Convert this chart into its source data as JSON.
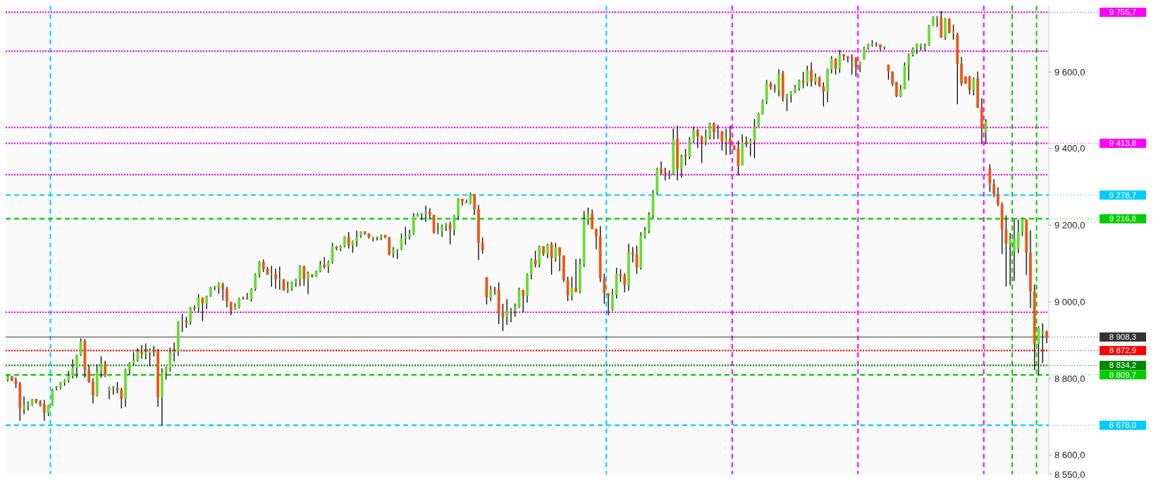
{
  "chart_data": {
    "type": "candlestick",
    "categories": [
      null,
      null,
      null,
      null,
      null,
      null,
      null,
      null,
      null,
      null,
      null,
      null,
      null,
      null,
      null,
      null,
      null,
      null,
      null,
      null,
      null,
      null,
      null,
      null,
      null,
      null,
      null,
      null,
      null,
      null,
      null,
      null,
      null,
      null,
      null,
      null,
      null,
      null,
      null,
      null,
      null,
      null,
      null,
      null,
      null,
      null,
      null,
      null,
      null,
      null,
      null,
      null,
      null,
      null,
      null,
      null,
      null,
      null,
      null,
      null,
      null,
      null,
      null,
      null,
      null,
      null,
      null,
      null,
      null,
      null,
      null,
      null,
      null,
      null,
      null,
      null,
      null,
      null,
      null,
      null,
      null,
      null,
      null,
      null,
      null,
      null,
      null,
      null,
      null,
      null,
      null,
      null,
      null,
      null,
      null,
      null,
      null,
      null,
      null,
      null,
      null,
      null,
      null,
      null,
      null,
      null,
      null,
      null,
      null,
      null,
      null,
      null,
      null,
      null,
      null,
      null,
      null,
      null,
      null,
      null,
      null,
      null,
      null,
      null,
      null,
      null,
      null,
      null,
      null,
      null,
      null,
      null,
      null,
      null,
      null,
      null,
      null,
      null,
      null,
      null,
      null,
      null,
      null,
      null,
      null,
      null,
      null,
      null,
      null,
      null,
      null,
      null,
      null,
      null,
      null,
      null,
      null,
      null,
      null,
      null,
      null,
      null,
      null,
      null,
      null,
      null,
      null,
      null,
      null,
      null,
      null,
      null,
      null,
      null,
      null,
      null,
      null,
      null,
      null,
      null,
      null,
      null,
      null,
      null,
      null,
      null,
      null,
      null,
      null,
      null,
      null,
      null,
      null,
      null,
      null,
      null,
      null,
      null,
      null,
      null,
      null,
      null,
      null,
      null,
      null,
      null,
      null,
      null,
      null,
      null,
      null,
      null,
      null,
      null,
      null,
      null,
      null,
      null,
      null,
      null,
      null,
      null,
      null,
      null,
      null,
      null,
      null,
      null,
      null,
      null,
      null,
      null,
      null,
      null,
      null,
      null,
      null,
      null,
      null,
      null,
      null,
      null,
      null,
      null,
      null,
      null,
      null,
      null,
      null,
      null,
      null,
      null,
      null,
      null,
      null,
      null,
      null
    ],
    "ohlc": [
      [
        8797,
        8808,
        8792,
        8806
      ],
      [
        8806,
        8807,
        8793,
        8795
      ],
      [
        8795,
        8803,
        8775,
        8785
      ],
      [
        8785,
        8791,
        8690,
        8722
      ],
      [
        8721,
        8753,
        8707,
        8731
      ],
      [
        8731,
        8740,
        8717,
        8734
      ],
      [
        8733,
        8747,
        8729,
        8745
      ],
      [
        8747,
        8747,
        8735,
        8738
      ],
      [
        8738,
        8743,
        8727,
        8730
      ],
      [
        8733,
        8744,
        8690,
        8710
      ],
      [
        8709,
        8732,
        8702,
        8731
      ],
      [
        8729,
        8773,
        8729,
        8769
      ],
      [
        8775,
        8780,
        8769,
        8777
      ],
      [
        8775,
        8791,
        8771,
        8789
      ],
      [
        8789,
        8798,
        8781,
        8795
      ],
      [
        8795,
        8820,
        8789,
        8807
      ],
      [
        8807,
        8850,
        8800,
        8827
      ],
      [
        8828,
        8862,
        8802,
        8861
      ],
      [
        8862,
        8905,
        8859,
        8897
      ],
      [
        8897,
        8903,
        8802,
        8822
      ],
      [
        8822,
        8835,
        8789,
        8791
      ],
      [
        8791,
        8801,
        8735,
        8756
      ],
      [
        8756,
        8837,
        8753,
        8818
      ],
      [
        8818,
        8858,
        8802,
        8839
      ],
      [
        8839,
        8846,
        8804,
        8809
      ],
      [
        8769,
        8779,
        8746,
        8776
      ],
      [
        8777,
        8781,
        8758,
        8779
      ],
      [
        8776,
        8791,
        8761,
        8770
      ],
      [
        8770,
        8776,
        8722,
        8747
      ],
      [
        8747,
        8826,
        8726,
        8823
      ],
      [
        8823,
        8843,
        8809,
        8840
      ],
      [
        8840,
        8869,
        8834,
        8848
      ],
      [
        8848,
        8879,
        8844,
        8871
      ],
      [
        8871,
        8887,
        8851,
        8864
      ],
      [
        8864,
        8891,
        8850,
        8867
      ],
      [
        8867,
        8878,
        8832,
        8874
      ],
      [
        8874,
        8885,
        8858,
        8871
      ],
      [
        8871,
        8877,
        8726,
        8751
      ],
      [
        8751,
        8827,
        8677,
        8816
      ],
      [
        8816,
        8831,
        8797,
        8827
      ],
      [
        8827,
        8881,
        8818,
        8867
      ],
      [
        8867,
        8894,
        8844,
        8871
      ],
      [
        8871,
        8950,
        8859,
        8949
      ],
      [
        8949,
        8969,
        8921,
        8951
      ],
      [
        8951,
        8961,
        8932,
        8946
      ],
      [
        8946,
        8987,
        8940,
        8985
      ],
      [
        8985,
        8991,
        8976,
        8984
      ],
      [
        8984,
        9020,
        8972,
        9011
      ],
      [
        9011,
        9011,
        8950,
        8996
      ],
      [
        8996,
        9016,
        8981,
        9014
      ],
      [
        9016,
        9039,
        9013,
        9038
      ],
      [
        9037,
        9041,
        9030,
        9039
      ],
      [
        9038,
        9051,
        9021,
        9048
      ],
      [
        9046,
        9050,
        9004,
        9034
      ],
      [
        9034,
        9039,
        8986,
        9001
      ],
      [
        9000,
        9000,
        8965,
        8978
      ],
      [
        8979,
        8996,
        8979,
        8986
      ],
      [
        8986,
        9011,
        8983,
        9009
      ],
      [
        9009,
        9014,
        9006,
        9008
      ],
      [
        9009,
        9023,
        9006,
        9007
      ],
      [
        9008,
        9036,
        9001,
        9034
      ],
      [
        9034,
        9074,
        9029,
        9071
      ],
      [
        9071,
        9107,
        9063,
        9104
      ],
      [
        9104,
        9111,
        9078,
        9086
      ],
      [
        9087,
        9091,
        9071,
        9071
      ],
      [
        9071,
        9094,
        9039,
        9073
      ],
      [
        9072,
        9087,
        9034,
        9059
      ],
      [
        9059,
        9092,
        9032,
        9060
      ],
      [
        9059,
        9059,
        9029,
        9030
      ],
      [
        9030,
        9053,
        9023,
        9035
      ],
      [
        9035,
        9053,
        9029,
        9051
      ],
      [
        9051,
        9061,
        9039,
        9059
      ],
      [
        9059,
        9096,
        9041,
        9094
      ],
      [
        9094,
        9094,
        9042,
        9060
      ],
      [
        9060,
        9079,
        9020,
        9073
      ],
      [
        9072,
        9072,
        9063,
        9067
      ],
      [
        9067,
        9082,
        9065,
        9080
      ],
      [
        9080,
        9107,
        9077,
        9097
      ],
      [
        9097,
        9117,
        9087,
        9090
      ],
      [
        9092,
        9108,
        9075,
        9104
      ],
      [
        9104,
        9154,
        9100,
        9145
      ],
      [
        9144,
        9146,
        9135,
        9139
      ],
      [
        9139,
        9148,
        9132,
        9145
      ],
      [
        9145,
        9172,
        9142,
        9171
      ],
      [
        9170,
        9182,
        9139,
        9147
      ],
      [
        9147,
        9160,
        9128,
        9158
      ],
      [
        9158,
        9186,
        9144,
        9170
      ],
      [
        9173,
        9184,
        9167,
        9182
      ],
      [
        9184,
        9184,
        9175,
        9179
      ],
      [
        9179,
        9179,
        9165,
        9168
      ],
      [
        9167,
        9170,
        9158,
        9170
      ],
      [
        9170,
        9170,
        9160,
        9168
      ],
      [
        9168,
        9176,
        9161,
        9173
      ],
      [
        9175,
        9175,
        9166,
        9168
      ],
      [
        9168,
        9170,
        9121,
        9124
      ],
      [
        9126,
        9143,
        9115,
        9136
      ],
      [
        9137,
        9138,
        9112,
        9138
      ],
      [
        9138,
        9179,
        9135,
        9166
      ],
      [
        9166,
        9196,
        9149,
        9170
      ],
      [
        9170,
        9188,
        9163,
        9178
      ],
      [
        9178,
        9232,
        9175,
        9223
      ],
      [
        9223,
        9232,
        9222,
        9228
      ],
      [
        9228,
        9232,
        9213,
        9230
      ],
      [
        9230,
        9251,
        9209,
        9235
      ],
      [
        9235,
        9244,
        9218,
        9226
      ],
      [
        9227,
        9227,
        9178,
        9181
      ],
      [
        9180,
        9206,
        9176,
        9182
      ],
      [
        9185,
        9202,
        9170,
        9198
      ],
      [
        9198,
        9205,
        9185,
        9202
      ],
      [
        9202,
        9209,
        9150,
        9189
      ],
      [
        9188,
        9227,
        9173,
        9225
      ],
      [
        9225,
        9271,
        9214,
        9269
      ],
      [
        9269,
        9269,
        9251,
        9262
      ],
      [
        9260,
        9267,
        9259,
        9259
      ],
      [
        9258,
        9285,
        9255,
        9281
      ],
      [
        9281,
        9281,
        9227,
        9242
      ],
      [
        9242,
        9253,
        9109,
        9154
      ],
      [
        9154,
        9168,
        9126,
        9135
      ],
      [
        9064,
        9065,
        8993,
        9012
      ],
      [
        9012,
        9042,
        9002,
        9032
      ],
      [
        9032,
        9039,
        9018,
        9030
      ],
      [
        9032,
        9051,
        8942,
        8972
      ],
      [
        8972,
        8995,
        8924,
        8961
      ],
      [
        8961,
        9007,
        8940,
        8977
      ],
      [
        8977,
        8984,
        8947,
        8979
      ],
      [
        8977,
        8996,
        8961,
        8986
      ],
      [
        8986,
        9037,
        8984,
        9032
      ],
      [
        9030,
        9032,
        8973,
        9016
      ],
      [
        9016,
        9074,
        8998,
        9071
      ],
      [
        9071,
        9113,
        9059,
        9110
      ],
      [
        9110,
        9133,
        9090,
        9097
      ],
      [
        9097,
        9147,
        9090,
        9145
      ],
      [
        9145,
        9145,
        9120,
        9126
      ],
      [
        9126,
        9152,
        9114,
        9149
      ],
      [
        9151,
        9156,
        9071,
        9114
      ],
      [
        9114,
        9154,
        9105,
        9142
      ],
      [
        9142,
        9143,
        9080,
        9121
      ],
      [
        9121,
        9121,
        9052,
        9057
      ],
      [
        9057,
        9066,
        9002,
        9017
      ],
      [
        9017,
        9066,
        9004,
        9037
      ],
      [
        9037,
        9112,
        9025,
        9027
      ],
      [
        9027,
        9113,
        9022,
        9098
      ],
      [
        9098,
        9237,
        9091,
        9216
      ],
      [
        9216,
        9246,
        9201,
        9230
      ],
      [
        9230,
        9241,
        9189,
        9191
      ],
      [
        9191,
        9191,
        9137,
        9171
      ],
      [
        9171,
        9198,
        9052,
        9061
      ],
      [
        9061,
        9074,
        8995,
        9023
      ],
      [
        9023,
        9023,
        8965,
        9017
      ],
      [
        8979,
        9034,
        8976,
        9019
      ],
      [
        9018,
        9089,
        9009,
        9073
      ],
      [
        9073,
        9085,
        9052,
        9068
      ],
      [
        9068,
        9074,
        9025,
        9044
      ],
      [
        9044,
        9152,
        9029,
        9129
      ],
      [
        9129,
        9143,
        9103,
        9124
      ],
      [
        9124,
        9147,
        9073,
        9089
      ],
      [
        9089,
        9182,
        9084,
        9172
      ],
      [
        9172,
        9195,
        9165,
        9186
      ],
      [
        9186,
        9234,
        9179,
        9227
      ],
      [
        9227,
        9292,
        9218,
        9283
      ],
      [
        9283,
        9350,
        9280,
        9347
      ],
      [
        9347,
        9366,
        9331,
        9337
      ],
      [
        9338,
        9350,
        9317,
        9336
      ],
      [
        9336,
        9343,
        9320,
        9333
      ],
      [
        9333,
        9452,
        9331,
        9425
      ],
      [
        9425,
        9460,
        9317,
        9347
      ],
      [
        9347,
        9385,
        9324,
        9383
      ],
      [
        9384,
        9399,
        9356,
        9381
      ],
      [
        9379,
        9430,
        9372,
        9421
      ],
      [
        9421,
        9457,
        9415,
        9448
      ],
      [
        9448,
        9452,
        9401,
        9432
      ],
      [
        9432,
        9434,
        9362,
        9417
      ],
      [
        9418,
        9450,
        9409,
        9431
      ],
      [
        9432,
        9468,
        9424,
        9466
      ],
      [
        9466,
        9468,
        9424,
        9443
      ],
      [
        9445,
        9462,
        9425,
        9443
      ],
      [
        9445,
        9446,
        9395,
        9419
      ],
      [
        9419,
        9452,
        9383,
        9427
      ],
      [
        9427,
        9460,
        9384,
        9415
      ],
      [
        9408,
        9408,
        9396,
        9397
      ],
      [
        9400,
        9421,
        9330,
        9354
      ],
      [
        9356,
        9437,
        9356,
        9417
      ],
      [
        9417,
        9432,
        9404,
        9413
      ],
      [
        9413,
        9426,
        9381,
        9421
      ],
      [
        9421,
        9477,
        9375,
        9457
      ],
      [
        9459,
        9493,
        9457,
        9490
      ],
      [
        9490,
        9528,
        9489,
        9524
      ],
      [
        9524,
        9579,
        9516,
        9570
      ],
      [
        9570,
        9575,
        9553,
        9560
      ],
      [
        9559,
        9568,
        9546,
        9555
      ],
      [
        9555,
        9607,
        9536,
        9596
      ],
      [
        9596,
        9603,
        9523,
        9533
      ],
      [
        9535,
        9543,
        9498,
        9540
      ],
      [
        9540,
        9550,
        9520,
        9549
      ],
      [
        9549,
        9566,
        9545,
        9557
      ],
      [
        9557,
        9580,
        9551,
        9577
      ],
      [
        9577,
        9600,
        9557,
        9572
      ],
      [
        9572,
        9616,
        9563,
        9605
      ],
      [
        9605,
        9625,
        9561,
        9575
      ],
      [
        9575,
        9596,
        9566,
        9586
      ],
      [
        9586,
        9588,
        9561,
        9563
      ],
      [
        9563,
        9573,
        9510,
        9549
      ],
      [
        9549,
        9609,
        9521,
        9607
      ],
      [
        9607,
        9641,
        9596,
        9634
      ],
      [
        9634,
        9636,
        9593,
        9609
      ],
      [
        9609,
        9657,
        9598,
        9646
      ],
      [
        9646,
        9646,
        9630,
        9641
      ],
      [
        9641,
        9641,
        9625,
        9637
      ],
      [
        9639,
        9646,
        9593,
        9635
      ],
      [
        9635,
        9639,
        9588,
        9612
      ],
      [
        9618,
        9627,
        9599,
        9627
      ],
      [
        9634,
        9666,
        9632,
        9662
      ],
      [
        9662,
        9674,
        9658,
        9671
      ],
      [
        9671,
        9683,
        9666,
        9673
      ],
      [
        9674,
        9678,
        9666,
        9672
      ],
      [
        9672,
        9672,
        9655,
        9664
      ],
      [
        9664,
        9667,
        9658,
        9666
      ],
      [
        9619,
        9619,
        9580,
        9602
      ],
      [
        9601,
        9601,
        9563,
        9569
      ],
      [
        9574,
        9574,
        9534,
        9537
      ],
      [
        9537,
        9566,
        9534,
        9555
      ],
      [
        9555,
        9625,
        9555,
        9617
      ],
      [
        9617,
        9648,
        9577,
        9645
      ],
      [
        9645,
        9664,
        9640,
        9660
      ],
      [
        9660,
        9674,
        9647,
        9672
      ],
      [
        9668,
        9674,
        9656,
        9672
      ],
      [
        9664,
        9674,
        9655,
        9668
      ],
      [
        9670,
        9723,
        9668,
        9720
      ],
      [
        9720,
        9745,
        9719,
        9742
      ],
      [
        9741,
        9746,
        9717,
        9744
      ],
      [
        9742,
        9759,
        9689,
        9691
      ],
      [
        9691,
        9741,
        9684,
        9738
      ],
      [
        9738,
        9741,
        9701,
        9703
      ],
      [
        9702,
        9723,
        9684,
        9705
      ],
      [
        9699,
        9702,
        9516,
        9621
      ],
      [
        9621,
        9639,
        9564,
        9570
      ],
      [
        9588,
        9588,
        9569,
        9570
      ],
      [
        9588,
        9590,
        9541,
        9553
      ],
      [
        9553,
        9586,
        9539,
        9582
      ],
      [
        9582,
        9601,
        9506,
        9506
      ],
      [
        9506,
        9531,
        9412,
        9452
      ],
      [
        9441,
        9477,
        9412,
        9469
      ],
      [
        9348,
        9359,
        9287,
        9309
      ],
      [
        9307,
        9320,
        9273,
        9280
      ],
      [
        9280,
        9299,
        9250,
        9254
      ],
      [
        9254,
        9260,
        9125,
        9189
      ],
      [
        9189,
        9226,
        9040,
        9152
      ],
      [
        9152,
        9180,
        9043,
        9164
      ],
      [
        9131,
        9215,
        9055,
        9163
      ],
      [
        9139,
        9215,
        9127,
        9183
      ],
      [
        9183,
        9220,
        9172,
        9217
      ],
      [
        9215,
        9215,
        9070,
        9129
      ],
      [
        9129,
        9187,
        8984,
        9027
      ],
      [
        9027,
        9045,
        8822,
        8890
      ],
      [
        8890,
        8937,
        8808,
        8933
      ],
      [
        8918,
        8944,
        8840,
        8922
      ],
      [
        8923,
        8925,
        8892,
        8906
      ]
    ],
    "ylim": [
      8550,
      9773
    ],
    "yticks": [
      {
        "value": 8550,
        "label": "8 550,0"
      },
      {
        "value": 8600,
        "label": "8 600,0"
      },
      {
        "value": 8800,
        "label": "8 800,0"
      },
      {
        "value": 9000,
        "label": "9 000,0"
      },
      {
        "value": 9200,
        "label": "9 200,0"
      },
      {
        "value": 9400,
        "label": "9 400,0"
      },
      {
        "value": 9600,
        "label": "9 600,0"
      }
    ],
    "ref_lines": [
      {
        "axis": "y",
        "value": 9755.7,
        "label": "9 755,7",
        "color": "#ff00ff",
        "line_style": "dotted"
      },
      {
        "axis": "y",
        "value": 9654,
        "label": null,
        "color": "#ff00ff",
        "line_style": "dotted"
      },
      {
        "axis": "y",
        "value": 9455,
        "label": null,
        "color": "#ff00ff",
        "line_style": "dotted"
      },
      {
        "axis": "y",
        "value": 9413.8,
        "label": "9 413,8",
        "color": "#ff00ff",
        "line_style": "dotted"
      },
      {
        "axis": "y",
        "value": 9332,
        "label": null,
        "color": "#ff00ff",
        "line_style": "dotted"
      },
      {
        "axis": "y",
        "value": 9278.7,
        "label": "9 278,7",
        "color": "#00ccff",
        "line_style": "dashed"
      },
      {
        "axis": "y",
        "value": 9216.8,
        "label": "9 216,8",
        "color": "#00cc00",
        "line_style": "dashed"
      },
      {
        "axis": "y",
        "value": 8973,
        "label": null,
        "color": "#ff00ff",
        "line_style": "dotted"
      },
      {
        "axis": "y",
        "value": 8908.3,
        "label": "8 908,3",
        "color": "#333333",
        "line_style": "solid"
      },
      {
        "axis": "y",
        "value": 8872.9,
        "label": "8 872,9",
        "color": "#ff0000",
        "line_style": "dotted"
      },
      {
        "axis": "y",
        "value": 8834.2,
        "label": "8 834,2",
        "color": "#008800",
        "line_style": "dotted"
      },
      {
        "axis": "y",
        "value": 8809.7,
        "label": "8 809,7",
        "color": "#00cc00",
        "line_style": "dashed"
      },
      {
        "axis": "y",
        "value": 8678.0,
        "label": "8 678,0",
        "color": "#00ccff",
        "line_style": "dashed"
      }
    ]
  }
}
